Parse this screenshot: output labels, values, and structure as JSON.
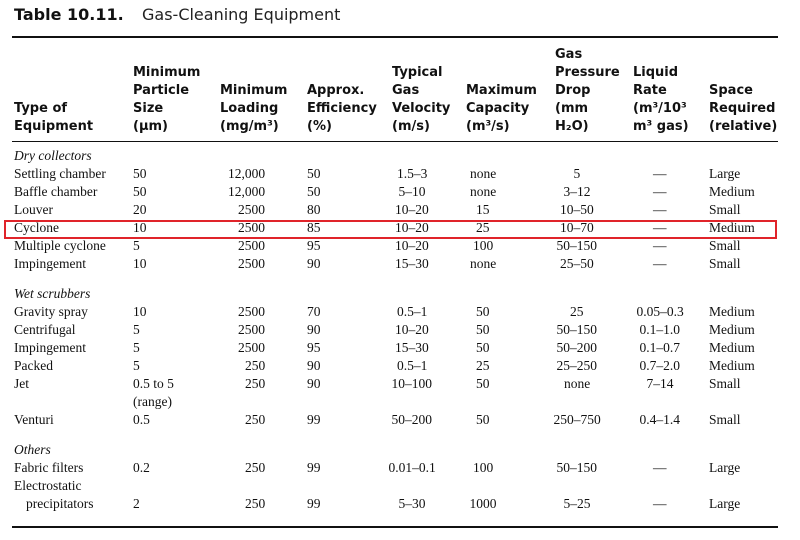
{
  "title": {
    "number": "Table 10.11.",
    "text": "Gas-Cleaning Equipment"
  },
  "table": {
    "header": [
      [
        "Type of",
        "Equipment"
      ],
      [
        "Minimum",
        "Particle",
        "Size",
        "(μm)"
      ],
      [
        "Minimum",
        "Loading",
        "(mg/m³)"
      ],
      [
        "Approx.",
        "Efficiency",
        "(%)"
      ],
      [
        "Typical",
        "Gas",
        "Velocity",
        "(m/s)"
      ],
      [
        "Maximum",
        "Capacity",
        "(m³/s)"
      ],
      [
        "Gas",
        "Pressure",
        "Drop",
        "(mm",
        "H₂O)"
      ],
      [
        "Liquid",
        "Rate",
        "(m³/10³",
        "m³ gas)"
      ],
      [
        "Space",
        "Required",
        "(relative)"
      ]
    ],
    "sections": [
      {
        "title": "Dry collectors",
        "rows": [
          [
            [
              "Settling chamber"
            ],
            [
              "50"
            ],
            [
              "12,000"
            ],
            [
              "50"
            ],
            [
              "1.5–3"
            ],
            [
              "none"
            ],
            [
              "5"
            ],
            [
              "—"
            ],
            [
              "Large"
            ]
          ],
          [
            [
              "Baffle chamber"
            ],
            [
              "50"
            ],
            [
              "12,000"
            ],
            [
              "50"
            ],
            [
              "5–10"
            ],
            [
              "none"
            ],
            [
              "3–12"
            ],
            [
              "—"
            ],
            [
              "Medium"
            ]
          ],
          [
            [
              "Louver"
            ],
            [
              "20"
            ],
            [
              "2500"
            ],
            [
              "80"
            ],
            [
              "10–20"
            ],
            [
              "15"
            ],
            [
              "10–50"
            ],
            [
              "—"
            ],
            [
              "Small"
            ]
          ],
          [
            [
              "Cyclone"
            ],
            [
              "10"
            ],
            [
              "2500"
            ],
            [
              "85"
            ],
            [
              "10–20"
            ],
            [
              "25"
            ],
            [
              "10–70"
            ],
            [
              "—"
            ],
            [
              "Medium"
            ]
          ],
          [
            [
              "Multiple cyclone"
            ],
            [
              "5"
            ],
            [
              "2500"
            ],
            [
              "95"
            ],
            [
              "10–20"
            ],
            [
              "100"
            ],
            [
              "50–150"
            ],
            [
              "—"
            ],
            [
              "Small"
            ]
          ],
          [
            [
              "Impingement"
            ],
            [
              "10"
            ],
            [
              "2500"
            ],
            [
              "90"
            ],
            [
              "15–30"
            ],
            [
              "none"
            ],
            [
              "25–50"
            ],
            [
              "—"
            ],
            [
              "Small"
            ]
          ]
        ]
      },
      {
        "title": "Wet scrubbers",
        "rows": [
          [
            [
              "Gravity spray"
            ],
            [
              "10"
            ],
            [
              "2500"
            ],
            [
              "70"
            ],
            [
              "0.5–1"
            ],
            [
              "50"
            ],
            [
              "25"
            ],
            [
              "0.05–0.3"
            ],
            [
              "Medium"
            ]
          ],
          [
            [
              "Centrifugal"
            ],
            [
              "5"
            ],
            [
              "2500"
            ],
            [
              "90"
            ],
            [
              "10–20"
            ],
            [
              "50"
            ],
            [
              "50–150"
            ],
            [
              "0.1–1.0"
            ],
            [
              "Medium"
            ]
          ],
          [
            [
              "Impingement"
            ],
            [
              "5"
            ],
            [
              "2500"
            ],
            [
              "95"
            ],
            [
              "15–30"
            ],
            [
              "50"
            ],
            [
              "50–200"
            ],
            [
              "0.1–0.7"
            ],
            [
              "Medium"
            ]
          ],
          [
            [
              "Packed"
            ],
            [
              "5"
            ],
            [
              "250"
            ],
            [
              "90"
            ],
            [
              "0.5–1"
            ],
            [
              "25"
            ],
            [
              "25–250"
            ],
            [
              "0.7–2.0"
            ],
            [
              "Medium"
            ]
          ],
          [
            [
              "Jet"
            ],
            [
              "0.5 to 5",
              "(range)"
            ],
            [
              "250"
            ],
            [
              "90"
            ],
            [
              "10–100"
            ],
            [
              "50"
            ],
            [
              "none"
            ],
            [
              "7–14"
            ],
            [
              "Small"
            ]
          ],
          [
            [
              "Venturi"
            ],
            [
              "0.5"
            ],
            [
              "250"
            ],
            [
              "99"
            ],
            [
              "50–200"
            ],
            [
              "50"
            ],
            [
              "250–750"
            ],
            [
              "0.4–1.4"
            ],
            [
              "Small"
            ]
          ]
        ]
      },
      {
        "title": "Others",
        "rows": [
          [
            [
              "Fabric filters"
            ],
            [
              "0.2"
            ],
            [
              "250"
            ],
            [
              "99"
            ],
            [
              "0.01–0.1"
            ],
            [
              "100"
            ],
            [
              "50–150"
            ],
            [
              "—"
            ],
            [
              "Large"
            ]
          ],
          [
            [
              "Electrostatic",
              "precipitators"
            ],
            [
              "2"
            ],
            [
              "250"
            ],
            [
              "99"
            ],
            [
              "5–30"
            ],
            [
              "1000"
            ],
            [
              "5–25"
            ],
            [
              "—"
            ],
            [
              "Large"
            ]
          ]
        ]
      }
    ]
  }
}
